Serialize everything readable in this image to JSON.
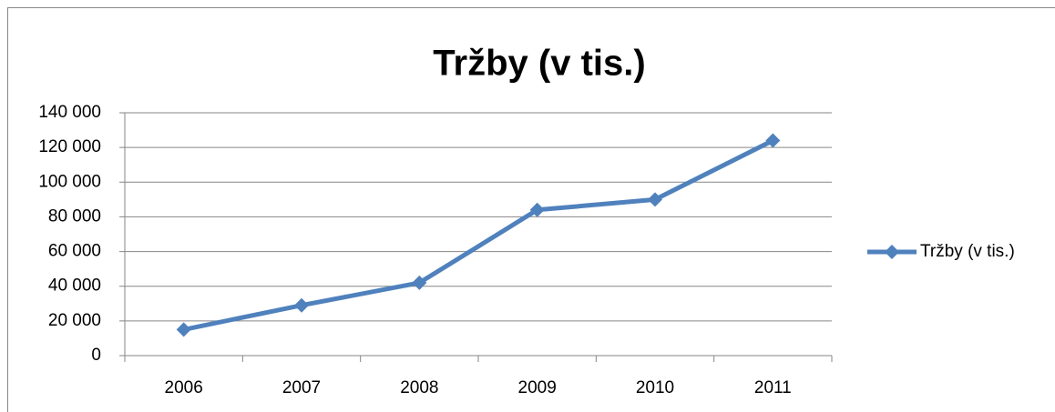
{
  "chart_data": {
    "type": "line",
    "title": "Tržby (v tis.)",
    "categories": [
      "2006",
      "2007",
      "2008",
      "2009",
      "2010",
      "2011"
    ],
    "series": [
      {
        "name": "Tržby (v tis.)",
        "color": "#4f81bd",
        "values": [
          15000,
          29000,
          42000,
          84000,
          90000,
          124000
        ]
      }
    ],
    "ylim": [
      0,
      140000
    ],
    "yticks": [
      0,
      {
        "value": 20000,
        "label": "20 000"
      },
      {
        "value": 40000,
        "label": "40 000"
      },
      {
        "value": 60000,
        "label": "60 000"
      },
      {
        "value": 80000,
        "label": "80 000"
      },
      {
        "value": 100000,
        "label": "100 000"
      },
      {
        "value": 120000,
        "label": "120 000"
      },
      {
        "value": 140000,
        "label": "140 000"
      }
    ],
    "grid": true,
    "legend": "right"
  }
}
